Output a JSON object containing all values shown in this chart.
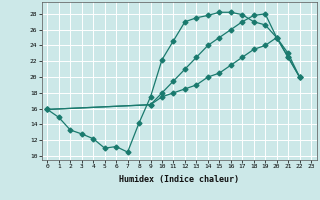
{
  "xlabel": "Humidex (Indice chaleur)",
  "bg_color": "#cce8e8",
  "grid_color": "#ffffff",
  "line_color": "#1a7a6e",
  "xlim": [
    -0.5,
    23.5
  ],
  "ylim": [
    9.5,
    29.5
  ],
  "xticks": [
    0,
    1,
    2,
    3,
    4,
    5,
    6,
    7,
    8,
    9,
    10,
    11,
    12,
    13,
    14,
    15,
    16,
    17,
    18,
    19,
    20,
    21,
    22,
    23
  ],
  "yticks": [
    10,
    12,
    14,
    16,
    18,
    20,
    22,
    24,
    26,
    28
  ],
  "line1_x": [
    0,
    1,
    2,
    3,
    4,
    5,
    6,
    7,
    8,
    9,
    10,
    11,
    12,
    13,
    14,
    15,
    16,
    17,
    18,
    19,
    20,
    21,
    22
  ],
  "line1_y": [
    15.9,
    14.9,
    13.3,
    12.8,
    12.2,
    11.0,
    11.2,
    10.5,
    14.2,
    17.5,
    22.2,
    24.6,
    27.0,
    27.5,
    27.8,
    28.2,
    28.2,
    27.9,
    27.0,
    26.6,
    25.0,
    23.0,
    20.0
  ],
  "line2_x": [
    0,
    9,
    10,
    11,
    12,
    13,
    14,
    15,
    16,
    17,
    18,
    19,
    20,
    21,
    22
  ],
  "line2_y": [
    15.9,
    16.5,
    18.0,
    19.5,
    21.0,
    22.5,
    24.0,
    25.0,
    26.0,
    27.0,
    27.8,
    28.0,
    25.0,
    22.5,
    20.0
  ],
  "line3_x": [
    0,
    9,
    10,
    11,
    12,
    13,
    14,
    15,
    16,
    17,
    18,
    19,
    20,
    21,
    22
  ],
  "line3_y": [
    15.9,
    16.5,
    17.5,
    18.0,
    18.5,
    19.0,
    20.0,
    20.5,
    21.5,
    22.5,
    23.5,
    24.0,
    25.0,
    22.5,
    20.0
  ]
}
